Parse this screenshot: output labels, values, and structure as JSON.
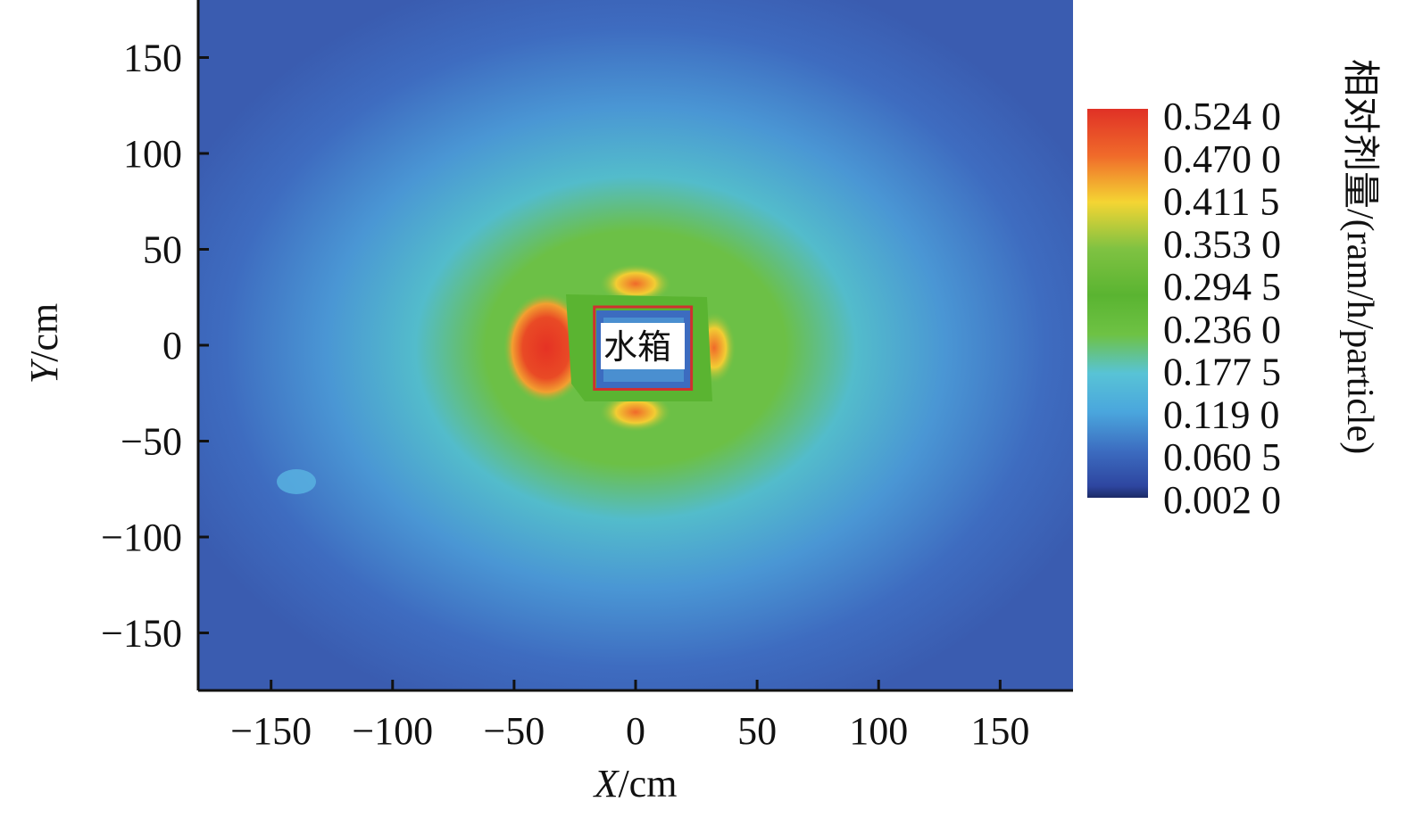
{
  "chart_data": {
    "type": "heatmap",
    "title": "",
    "xlabel": {
      "italic": "X",
      "unit": "/cm"
    },
    "ylabel": {
      "italic": "Y",
      "unit": "/cm"
    },
    "xlim": [
      -180,
      180
    ],
    "ylim": [
      -180,
      180
    ],
    "x_ticks": [
      -150,
      -100,
      -50,
      0,
      50,
      100,
      150
    ],
    "y_ticks": [
      150,
      100,
      50,
      0,
      -50,
      -100,
      -150
    ],
    "x_tick_labels": [
      "−150",
      "−100",
      "−50",
      "0",
      "50",
      "100",
      "150"
    ],
    "y_tick_labels": [
      "150",
      "100",
      "50",
      "0",
      "−50",
      "−100",
      "−150"
    ],
    "colorbar": {
      "title": "相对剂量/(ram/h/particle)",
      "values": [
        0.524,
        0.47,
        0.4115,
        0.353,
        0.2945,
        0.236,
        0.1775,
        0.119,
        0.0605,
        0.002
      ],
      "labels": [
        "0.524 0",
        "0.470 0",
        "0.411 5",
        "0.353 0",
        "0.294 5",
        "0.236 0",
        "0.177 5",
        "0.119 0",
        "0.060 5",
        "0.002 0"
      ],
      "colors": [
        "#e03126",
        "#f06a2a",
        "#f4d533",
        "#7fc242",
        "#5ab431",
        "#6ec244",
        "#58c3d6",
        "#4aa6dd",
        "#3c6cc0",
        "#1b2a66"
      ]
    },
    "annotations": [
      {
        "text": "水箱",
        "x": 5,
        "y": 0,
        "box_x": [
          -17,
          23
        ],
        "box_y": [
          -23,
          20
        ],
        "box_color": "#d0302e"
      }
    ],
    "field_description_colors": {
      "background": "#3c5fb0",
      "low": "#4a8fd0",
      "mid": "#52bcd8",
      "green": "#6cc046",
      "high_yellow": "#f2cd33",
      "peak": "#e53224"
    }
  }
}
